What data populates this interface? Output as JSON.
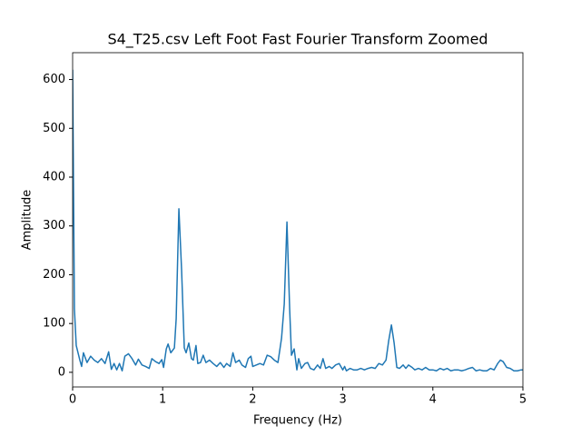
{
  "chart_data": {
    "type": "line",
    "title": "S4_T25.csv Left Foot Fast Fourier Transform Zoomed",
    "x_label": "Frequency (Hz)",
    "y_label": "Amplitude",
    "color": "#1f77b4",
    "x": [
      0,
      0.02,
      0.04,
      0.08,
      0.1,
      0.12,
      0.16,
      0.2,
      0.24,
      0.28,
      0.32,
      0.36,
      0.4,
      0.43,
      0.46,
      0.49,
      0.52,
      0.55,
      0.58,
      0.62,
      0.66,
      0.7,
      0.73,
      0.77,
      0.81,
      0.85,
      0.88,
      0.92,
      0.96,
      0.99,
      1.01,
      1.04,
      1.06,
      1.09,
      1.13,
      1.15,
      1.18,
      1.21,
      1.24,
      1.26,
      1.29,
      1.32,
      1.34,
      1.37,
      1.39,
      1.42,
      1.45,
      1.48,
      1.52,
      1.56,
      1.6,
      1.64,
      1.68,
      1.71,
      1.75,
      1.78,
      1.81,
      1.85,
      1.88,
      1.92,
      1.95,
      1.98,
      2.0,
      2.04,
      2.08,
      2.12,
      2.16,
      2.2,
      2.24,
      2.28,
      2.32,
      2.35,
      2.38,
      2.41,
      2.43,
      2.46,
      2.49,
      2.51,
      2.54,
      2.58,
      2.61,
      2.64,
      2.68,
      2.72,
      2.75,
      2.78,
      2.81,
      2.85,
      2.88,
      2.92,
      2.96,
      3.0,
      3.02,
      3.04,
      3.08,
      3.12,
      3.16,
      3.2,
      3.24,
      3.28,
      3.32,
      3.36,
      3.4,
      3.44,
      3.48,
      3.51,
      3.54,
      3.57,
      3.6,
      3.63,
      3.67,
      3.7,
      3.73,
      3.77,
      3.8,
      3.84,
      3.88,
      3.92,
      3.96,
      4.0,
      4.04,
      4.08,
      4.12,
      4.16,
      4.2,
      4.24,
      4.28,
      4.32,
      4.36,
      4.4,
      4.44,
      4.48,
      4.52,
      4.56,
      4.6,
      4.64,
      4.68,
      4.72,
      4.75,
      4.78,
      4.82,
      4.86,
      4.9,
      4.94,
      4.98,
      5.0
    ],
    "values": [
      620,
      130,
      55,
      25,
      12,
      40,
      20,
      33,
      25,
      20,
      28,
      18,
      42,
      6,
      18,
      5,
      18,
      3,
      33,
      38,
      28,
      15,
      27,
      15,
      12,
      8,
      28,
      22,
      18,
      26,
      10,
      48,
      58,
      40,
      50,
      110,
      335,
      210,
      50,
      40,
      60,
      28,
      25,
      55,
      18,
      20,
      35,
      20,
      25,
      18,
      12,
      20,
      10,
      18,
      12,
      40,
      20,
      25,
      15,
      10,
      28,
      33,
      12,
      15,
      18,
      15,
      35,
      32,
      25,
      20,
      70,
      140,
      308,
      130,
      35,
      48,
      5,
      28,
      8,
      18,
      20,
      8,
      5,
      15,
      8,
      28,
      8,
      12,
      8,
      15,
      18,
      5,
      12,
      3,
      8,
      5,
      5,
      8,
      5,
      8,
      10,
      8,
      18,
      15,
      25,
      65,
      97,
      60,
      10,
      8,
      15,
      8,
      15,
      10,
      5,
      8,
      5,
      10,
      5,
      5,
      3,
      8,
      5,
      8,
      3,
      5,
      5,
      3,
      5,
      8,
      10,
      3,
      5,
      3,
      3,
      8,
      5,
      18,
      25,
      22,
      10,
      8,
      3,
      3,
      5,
      5
    ],
    "xlim": [
      0,
      5
    ],
    "xticks": [
      0,
      1,
      2,
      3,
      4,
      5
    ],
    "ylim": [
      -30,
      655
    ],
    "yticks": [
      0,
      100,
      200,
      300,
      400,
      500,
      600
    ]
  }
}
